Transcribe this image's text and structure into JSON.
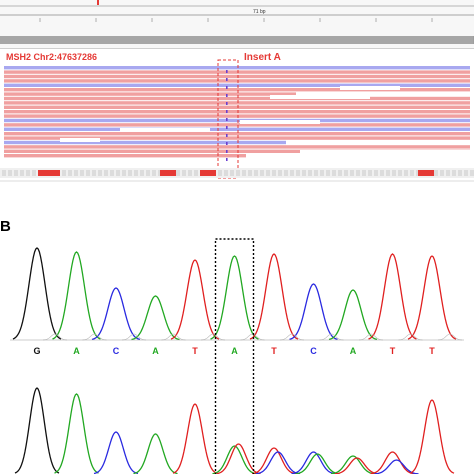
{
  "panel_a": {
    "location_label": "MSH2 Chr2:47637286",
    "insert_label": "Insert A",
    "ruler_span_label": "71 bp"
  },
  "panel_b": {
    "label": "B",
    "sequence": [
      "G",
      "A",
      "C",
      "A",
      "T",
      "A",
      "T",
      "C",
      "A",
      "T",
      "T"
    ]
  },
  "colors": {
    "A": "#22a822",
    "C": "#2a2ae0",
    "G": "#111111",
    "T": "#e02020",
    "read_pink": "#f0a0a0",
    "read_blue": "#a8a8f0",
    "accent_red": "#e53935"
  }
}
